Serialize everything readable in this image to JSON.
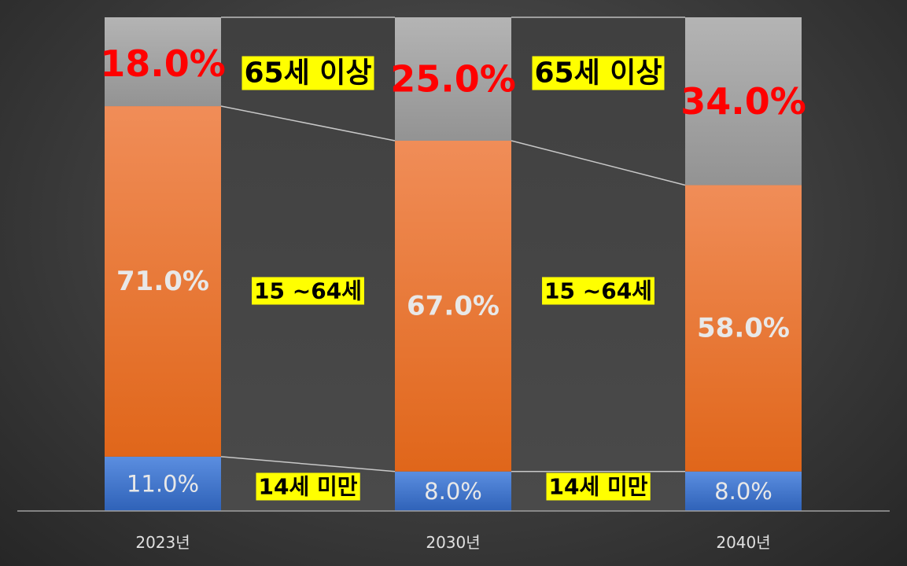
{
  "chart_data": {
    "type": "bar",
    "stacked": true,
    "normalized_percent": true,
    "categories": [
      "2023년",
      "2030년",
      "2040년"
    ],
    "series": [
      {
        "name": "14세 미만",
        "values": [
          11.0,
          8.0,
          8.0
        ],
        "labels": [
          "11.0%",
          "8.0%",
          "8.0%"
        ],
        "color": "#4472C4"
      },
      {
        "name": "15 ~64세",
        "values": [
          71.0,
          67.0,
          58.0
        ],
        "labels": [
          "71.0%",
          "67.0%",
          "58.0%"
        ],
        "color": "#ED7D31"
      },
      {
        "name": "65세 이상",
        "values": [
          18.0,
          25.0,
          34.0
        ],
        "labels": [
          "18.0%",
          "25.0%",
          "34.0%"
        ],
        "color": "#A5A5A5"
      }
    ],
    "ylim": [
      0,
      100
    ],
    "title": "",
    "xlabel": "",
    "ylabel": "",
    "grid": false,
    "series_lines": true,
    "annotations": [
      {
        "text": "65세 이상",
        "between": [
          0,
          1
        ],
        "series": 2
      },
      {
        "text": "65세 이상",
        "between": [
          1,
          2
        ],
        "series": 2
      },
      {
        "text": "15 ~64세",
        "between": [
          0,
          1
        ],
        "series": 1
      },
      {
        "text": "15 ~64세",
        "between": [
          1,
          2
        ],
        "series": 1
      },
      {
        "text": "14세 미만",
        "between": [
          0,
          1
        ],
        "series": 0
      },
      {
        "text": "14세 미만",
        "between": [
          1,
          2
        ],
        "series": 0
      }
    ],
    "colors": {
      "label_elderly": "#FF0000",
      "label_working": "#E8E8E8",
      "label_child": "#E8E8E8",
      "annotation_bg": "#FFFF00",
      "annotation_text": "#000000",
      "gap_fill": "#3f3f3f",
      "axis_line": "#a0a0a0",
      "tick_text": "#e0e0e0"
    }
  }
}
